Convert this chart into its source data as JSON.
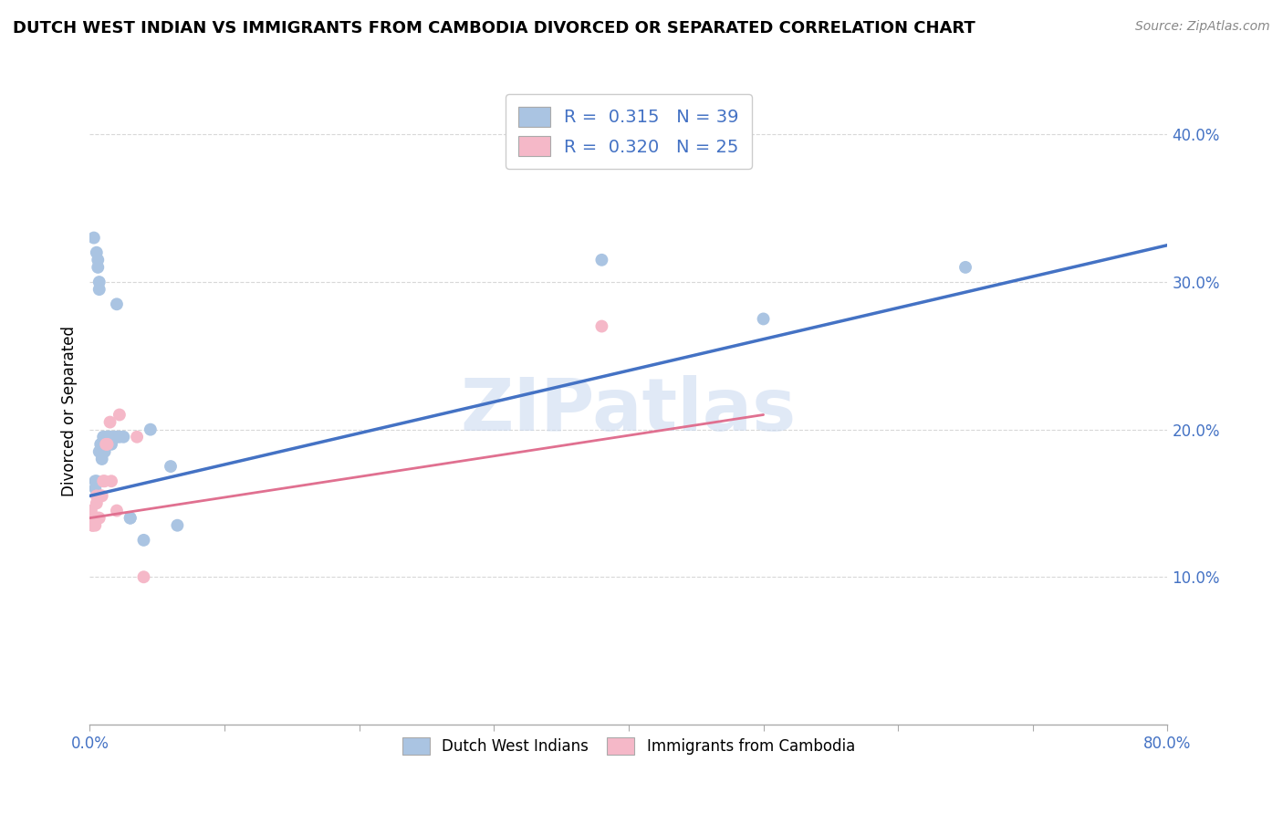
{
  "title": "DUTCH WEST INDIAN VS IMMIGRANTS FROM CAMBODIA DIVORCED OR SEPARATED CORRELATION CHART",
  "source": "Source: ZipAtlas.com",
  "ylabel": "Divorced or Separated",
  "legend_label1": "Dutch West Indians",
  "legend_label2": "Immigrants from Cambodia",
  "R1": "0.315",
  "N1": "39",
  "R2": "0.320",
  "N2": "25",
  "color_blue": "#aac4e2",
  "color_pink": "#f5b8c8",
  "line_blue": "#4472c4",
  "line_pink_solid": "#e07090",
  "watermark": "ZIPatlas",
  "xmin": 0.0,
  "xmax": 0.8,
  "ymin": 0.0,
  "ymax": 0.425,
  "blue_x": [
    0.003,
    0.005,
    0.006,
    0.006,
    0.007,
    0.007,
    0.007,
    0.008,
    0.008,
    0.009,
    0.009,
    0.009,
    0.01,
    0.01,
    0.01,
    0.011,
    0.011,
    0.012,
    0.013,
    0.014,
    0.015,
    0.016,
    0.018,
    0.02,
    0.022,
    0.025,
    0.03,
    0.04,
    0.06,
    0.065,
    0.004,
    0.004,
    0.005,
    0.38,
    0.5,
    0.65,
    0.02,
    0.03,
    0.045
  ],
  "blue_y": [
    0.33,
    0.32,
    0.315,
    0.31,
    0.3,
    0.295,
    0.185,
    0.19,
    0.185,
    0.19,
    0.185,
    0.18,
    0.195,
    0.19,
    0.185,
    0.19,
    0.185,
    0.19,
    0.195,
    0.195,
    0.195,
    0.19,
    0.195,
    0.195,
    0.195,
    0.195,
    0.14,
    0.125,
    0.175,
    0.135,
    0.165,
    0.16,
    0.165,
    0.315,
    0.275,
    0.31,
    0.285,
    0.14,
    0.2
  ],
  "pink_x": [
    0.001,
    0.001,
    0.002,
    0.002,
    0.003,
    0.003,
    0.004,
    0.004,
    0.005,
    0.005,
    0.006,
    0.007,
    0.008,
    0.009,
    0.01,
    0.011,
    0.012,
    0.013,
    0.015,
    0.016,
    0.02,
    0.022,
    0.035,
    0.04,
    0.38
  ],
  "pink_y": [
    0.145,
    0.14,
    0.135,
    0.135,
    0.14,
    0.14,
    0.135,
    0.14,
    0.155,
    0.15,
    0.14,
    0.14,
    0.155,
    0.155,
    0.165,
    0.165,
    0.19,
    0.19,
    0.205,
    0.165,
    0.145,
    0.21,
    0.195,
    0.1,
    0.27
  ],
  "blue_line_x": [
    0.0,
    0.8
  ],
  "blue_line_y": [
    0.155,
    0.325
  ],
  "pink_line_x": [
    0.0,
    0.5
  ],
  "pink_line_y": [
    0.14,
    0.21
  ]
}
